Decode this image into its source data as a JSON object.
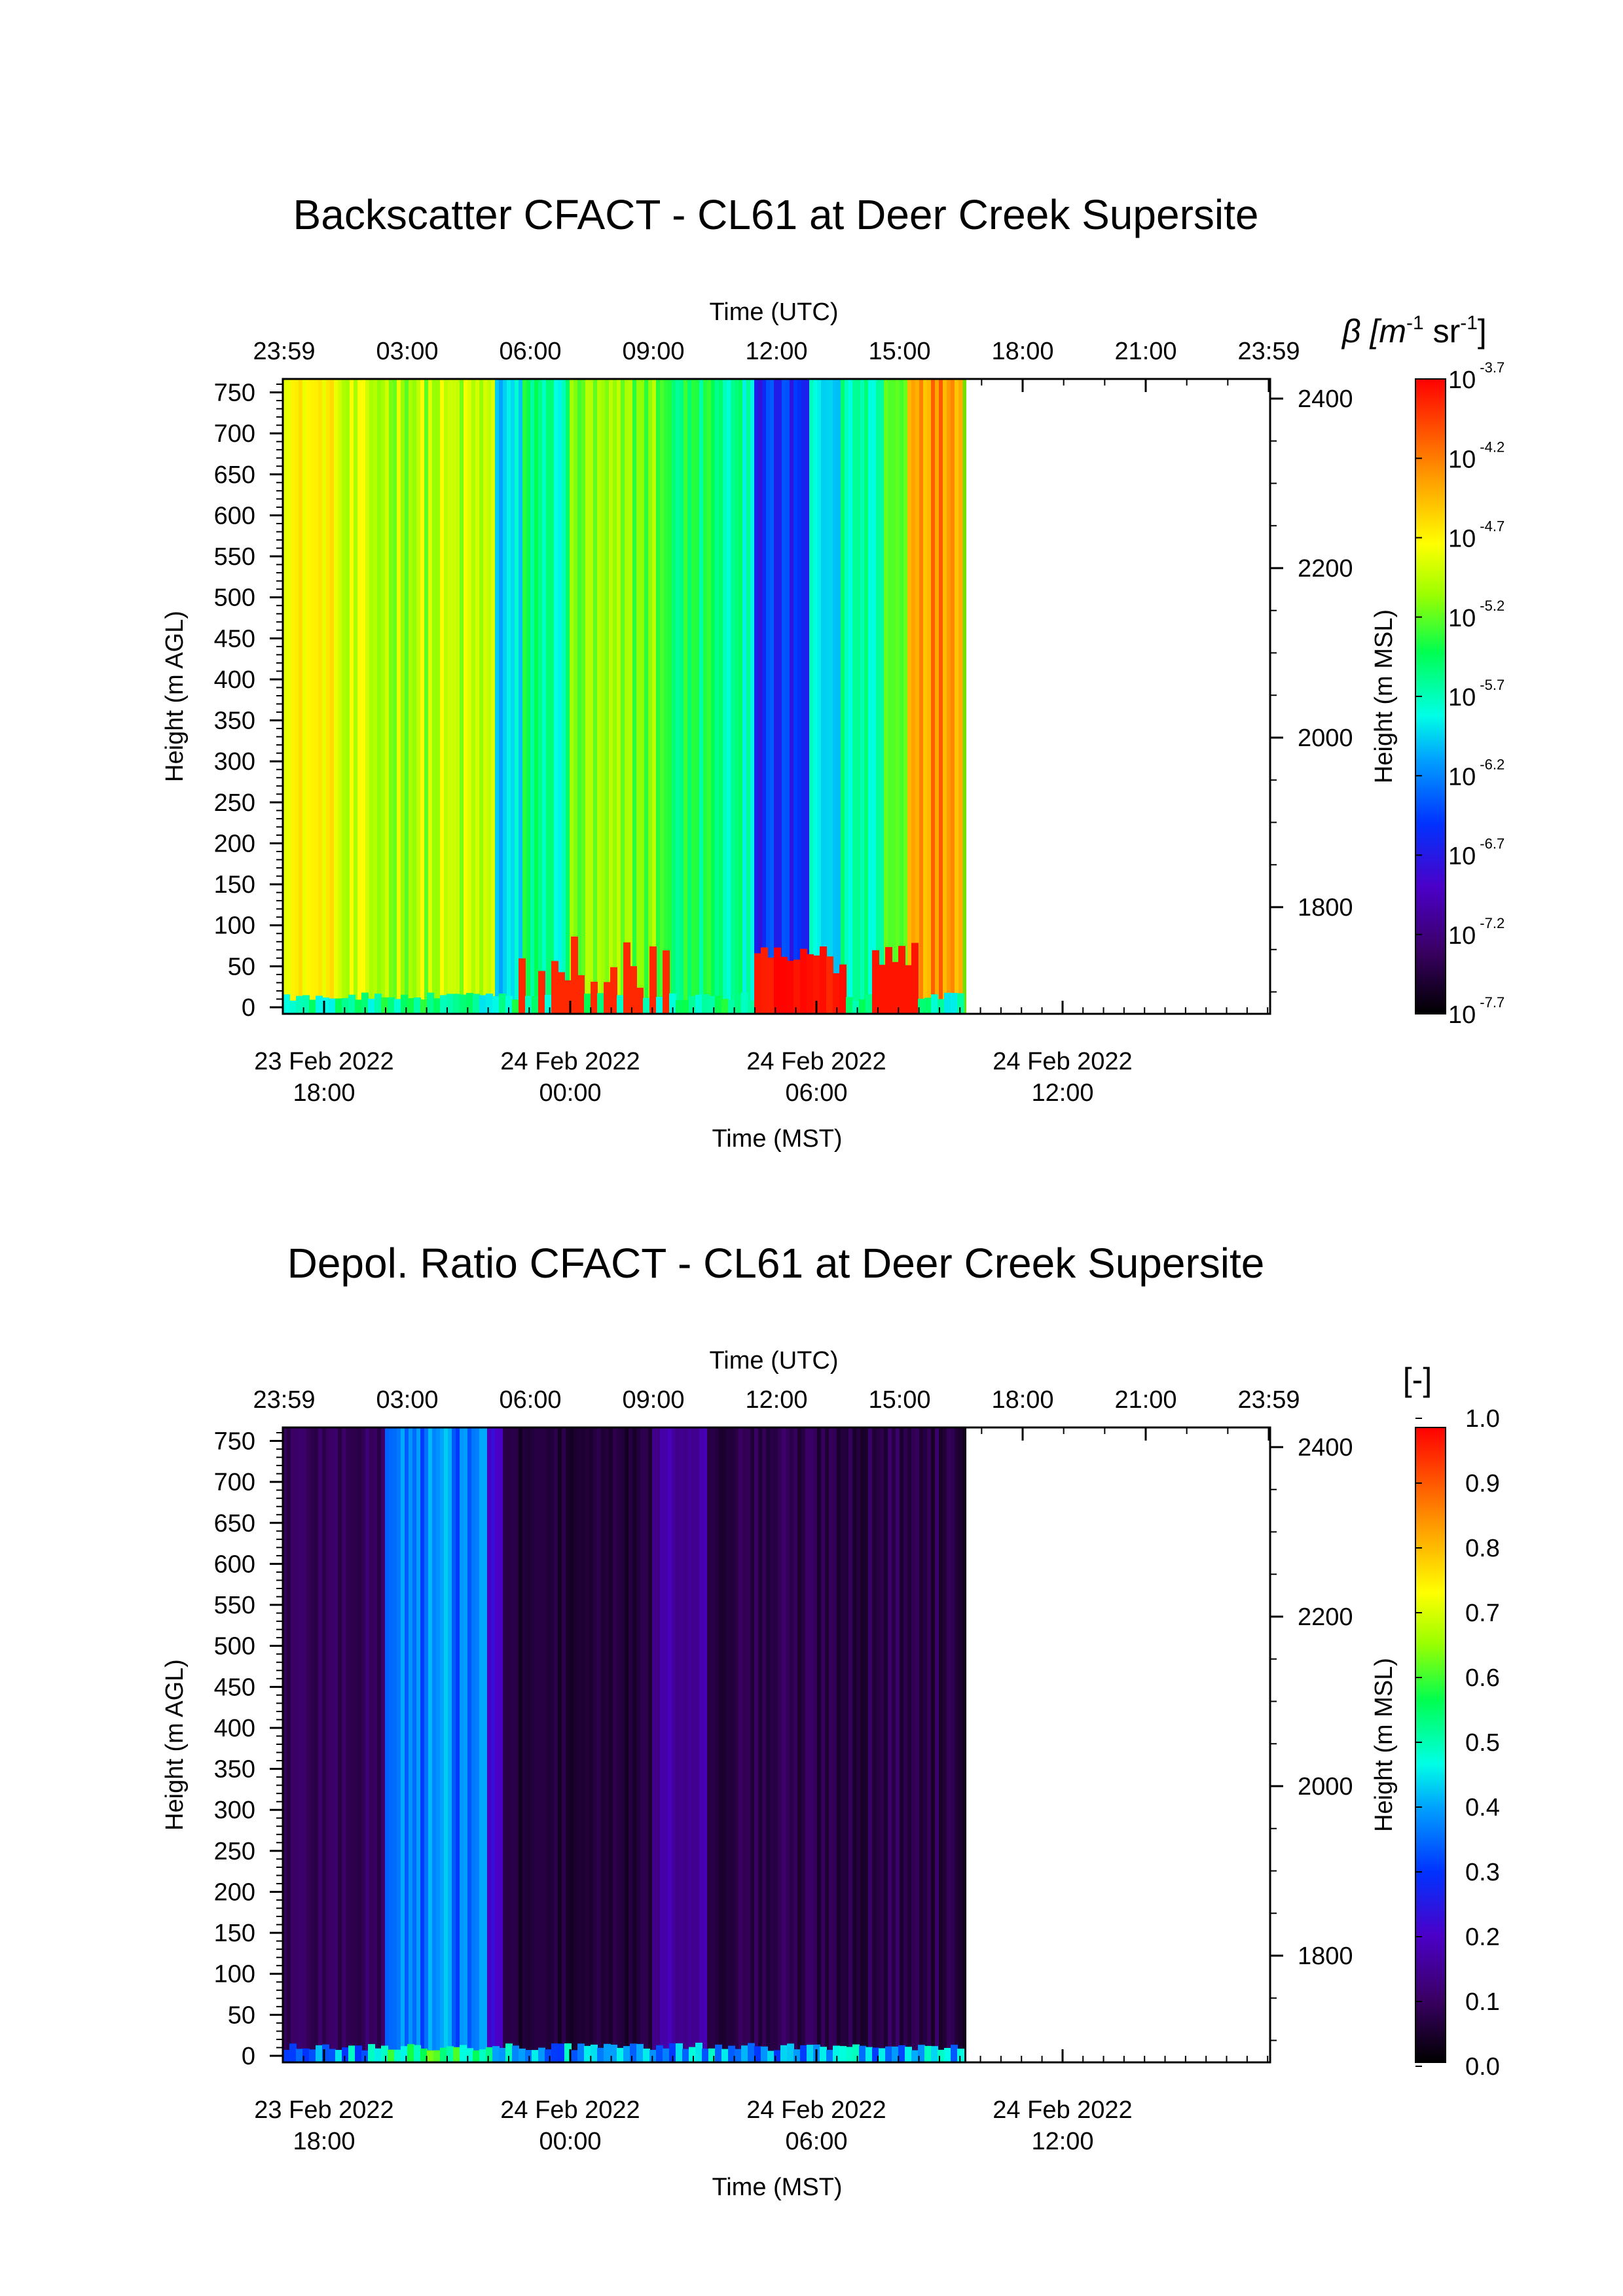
{
  "chart_data": [
    {
      "type": "heatmap",
      "title": "Backscatter CFACT - CL61 at Deer Creek Supersite",
      "x_top_label": "Time (UTC)",
      "x_top_ticks": [
        "23:59",
        "03:00",
        "06:00",
        "09:00",
        "12:00",
        "15:00",
        "18:00",
        "21:00",
        "23:59"
      ],
      "x_bottom_label": "Time (MST)",
      "x_bottom_ticks": [
        {
          "date": "23 Feb 2022",
          "time": "18:00"
        },
        {
          "date": "24 Feb 2022",
          "time": "00:00"
        },
        {
          "date": "24 Feb 2022",
          "time": "06:00"
        },
        {
          "date": "24 Feb 2022",
          "time": "12:00"
        }
      ],
      "y_left_label": "Height (m AGL)",
      "y_left_ticks": [
        "0",
        "50",
        "100",
        "150",
        "200",
        "250",
        "300",
        "350",
        "400",
        "450",
        "500",
        "550",
        "600",
        "650",
        "700",
        "750"
      ],
      "y_left_range": [
        0,
        760
      ],
      "y_right_label": "Height (m MSL)",
      "y_right_ticks": [
        "1800",
        "2000",
        "2200",
        "2400"
      ],
      "data_end_utc_hour": 16.5,
      "colorbar": {
        "label_prefix": "β [m",
        "label_exp1": "-1",
        "label_mid": " sr",
        "label_exp2": "-1",
        "label_suffix": "]",
        "base": "10",
        "exponents": [
          "-3.7",
          "-4.2",
          "-4.7",
          "-5.2",
          "-5.7",
          "-6.2",
          "-6.7",
          "-7.2",
          "-7.7"
        ],
        "scale": "log",
        "colormap": "rainbow"
      }
    },
    {
      "type": "heatmap",
      "title": "Depol. Ratio CFACT - CL61 at Deer Creek Supersite",
      "x_top_label": "Time (UTC)",
      "x_top_ticks": [
        "23:59",
        "03:00",
        "06:00",
        "09:00",
        "12:00",
        "15:00",
        "18:00",
        "21:00",
        "23:59"
      ],
      "x_bottom_label": "Time (MST)",
      "x_bottom_ticks": [
        {
          "date": "23 Feb 2022",
          "time": "18:00"
        },
        {
          "date": "24 Feb 2022",
          "time": "00:00"
        },
        {
          "date": "24 Feb 2022",
          "time": "06:00"
        },
        {
          "date": "24 Feb 2022",
          "time": "12:00"
        }
      ],
      "y_left_label": "Height (m AGL)",
      "y_left_ticks": [
        "0",
        "50",
        "100",
        "150",
        "200",
        "250",
        "300",
        "350",
        "400",
        "450",
        "500",
        "550",
        "600",
        "650",
        "700",
        "750"
      ],
      "y_left_range": [
        0,
        760
      ],
      "y_right_label": "Height (m MSL)",
      "y_right_ticks": [
        "1800",
        "2000",
        "2200",
        "2400"
      ],
      "data_end_utc_hour": 16.5,
      "colorbar": {
        "label": "[-]",
        "ticks": [
          "1.0",
          "0.9",
          "0.8",
          "0.7",
          "0.6",
          "0.5",
          "0.4",
          "0.3",
          "0.2",
          "0.1",
          "0.0"
        ],
        "range": [
          0,
          1
        ],
        "colormap": "rainbow"
      }
    }
  ]
}
